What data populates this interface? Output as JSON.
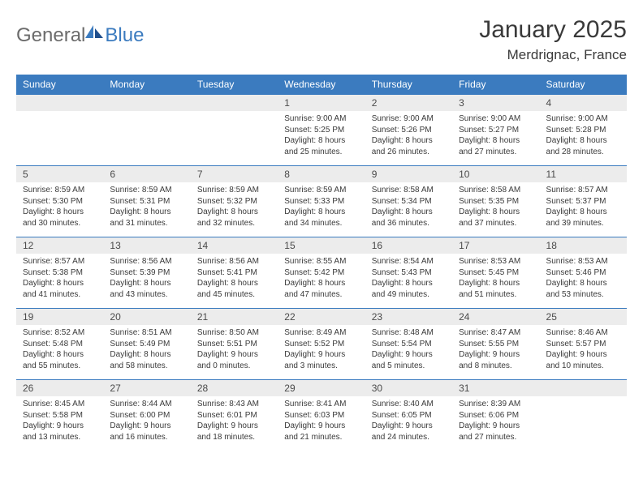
{
  "logo": {
    "text_left": "General",
    "text_right": "Blue"
  },
  "title": "January 2025",
  "location": "Merdrignac, France",
  "colors": {
    "header_bg": "#3b7bbf",
    "header_text": "#ffffff",
    "daynum_bg": "#ececec",
    "text": "#3a3a3a",
    "logo_gray": "#6b6b6b",
    "logo_blue": "#3b7bbf",
    "row_border": "#3b7bbf"
  },
  "day_headers": [
    "Sunday",
    "Monday",
    "Tuesday",
    "Wednesday",
    "Thursday",
    "Friday",
    "Saturday"
  ],
  "weeks": [
    {
      "nums": [
        "",
        "",
        "",
        "1",
        "2",
        "3",
        "4"
      ],
      "sunrise": [
        "",
        "",
        "",
        "Sunrise: 9:00 AM",
        "Sunrise: 9:00 AM",
        "Sunrise: 9:00 AM",
        "Sunrise: 9:00 AM"
      ],
      "sunset": [
        "",
        "",
        "",
        "Sunset: 5:25 PM",
        "Sunset: 5:26 PM",
        "Sunset: 5:27 PM",
        "Sunset: 5:28 PM"
      ],
      "day1": [
        "",
        "",
        "",
        "Daylight: 8 hours",
        "Daylight: 8 hours",
        "Daylight: 8 hours",
        "Daylight: 8 hours"
      ],
      "day2": [
        "",
        "",
        "",
        "and 25 minutes.",
        "and 26 minutes.",
        "and 27 minutes.",
        "and 28 minutes."
      ]
    },
    {
      "nums": [
        "5",
        "6",
        "7",
        "8",
        "9",
        "10",
        "11"
      ],
      "sunrise": [
        "Sunrise: 8:59 AM",
        "Sunrise: 8:59 AM",
        "Sunrise: 8:59 AM",
        "Sunrise: 8:59 AM",
        "Sunrise: 8:58 AM",
        "Sunrise: 8:58 AM",
        "Sunrise: 8:57 AM"
      ],
      "sunset": [
        "Sunset: 5:30 PM",
        "Sunset: 5:31 PM",
        "Sunset: 5:32 PM",
        "Sunset: 5:33 PM",
        "Sunset: 5:34 PM",
        "Sunset: 5:35 PM",
        "Sunset: 5:37 PM"
      ],
      "day1": [
        "Daylight: 8 hours",
        "Daylight: 8 hours",
        "Daylight: 8 hours",
        "Daylight: 8 hours",
        "Daylight: 8 hours",
        "Daylight: 8 hours",
        "Daylight: 8 hours"
      ],
      "day2": [
        "and 30 minutes.",
        "and 31 minutes.",
        "and 32 minutes.",
        "and 34 minutes.",
        "and 36 minutes.",
        "and 37 minutes.",
        "and 39 minutes."
      ]
    },
    {
      "nums": [
        "12",
        "13",
        "14",
        "15",
        "16",
        "17",
        "18"
      ],
      "sunrise": [
        "Sunrise: 8:57 AM",
        "Sunrise: 8:56 AM",
        "Sunrise: 8:56 AM",
        "Sunrise: 8:55 AM",
        "Sunrise: 8:54 AM",
        "Sunrise: 8:53 AM",
        "Sunrise: 8:53 AM"
      ],
      "sunset": [
        "Sunset: 5:38 PM",
        "Sunset: 5:39 PM",
        "Sunset: 5:41 PM",
        "Sunset: 5:42 PM",
        "Sunset: 5:43 PM",
        "Sunset: 5:45 PM",
        "Sunset: 5:46 PM"
      ],
      "day1": [
        "Daylight: 8 hours",
        "Daylight: 8 hours",
        "Daylight: 8 hours",
        "Daylight: 8 hours",
        "Daylight: 8 hours",
        "Daylight: 8 hours",
        "Daylight: 8 hours"
      ],
      "day2": [
        "and 41 minutes.",
        "and 43 minutes.",
        "and 45 minutes.",
        "and 47 minutes.",
        "and 49 minutes.",
        "and 51 minutes.",
        "and 53 minutes."
      ]
    },
    {
      "nums": [
        "19",
        "20",
        "21",
        "22",
        "23",
        "24",
        "25"
      ],
      "sunrise": [
        "Sunrise: 8:52 AM",
        "Sunrise: 8:51 AM",
        "Sunrise: 8:50 AM",
        "Sunrise: 8:49 AM",
        "Sunrise: 8:48 AM",
        "Sunrise: 8:47 AM",
        "Sunrise: 8:46 AM"
      ],
      "sunset": [
        "Sunset: 5:48 PM",
        "Sunset: 5:49 PM",
        "Sunset: 5:51 PM",
        "Sunset: 5:52 PM",
        "Sunset: 5:54 PM",
        "Sunset: 5:55 PM",
        "Sunset: 5:57 PM"
      ],
      "day1": [
        "Daylight: 8 hours",
        "Daylight: 8 hours",
        "Daylight: 9 hours",
        "Daylight: 9 hours",
        "Daylight: 9 hours",
        "Daylight: 9 hours",
        "Daylight: 9 hours"
      ],
      "day2": [
        "and 55 minutes.",
        "and 58 minutes.",
        "and 0 minutes.",
        "and 3 minutes.",
        "and 5 minutes.",
        "and 8 minutes.",
        "and 10 minutes."
      ]
    },
    {
      "nums": [
        "26",
        "27",
        "28",
        "29",
        "30",
        "31",
        ""
      ],
      "sunrise": [
        "Sunrise: 8:45 AM",
        "Sunrise: 8:44 AM",
        "Sunrise: 8:43 AM",
        "Sunrise: 8:41 AM",
        "Sunrise: 8:40 AM",
        "Sunrise: 8:39 AM",
        ""
      ],
      "sunset": [
        "Sunset: 5:58 PM",
        "Sunset: 6:00 PM",
        "Sunset: 6:01 PM",
        "Sunset: 6:03 PM",
        "Sunset: 6:05 PM",
        "Sunset: 6:06 PM",
        ""
      ],
      "day1": [
        "Daylight: 9 hours",
        "Daylight: 9 hours",
        "Daylight: 9 hours",
        "Daylight: 9 hours",
        "Daylight: 9 hours",
        "Daylight: 9 hours",
        ""
      ],
      "day2": [
        "and 13 minutes.",
        "and 16 minutes.",
        "and 18 minutes.",
        "and 21 minutes.",
        "and 24 minutes.",
        "and 27 minutes.",
        ""
      ]
    }
  ]
}
